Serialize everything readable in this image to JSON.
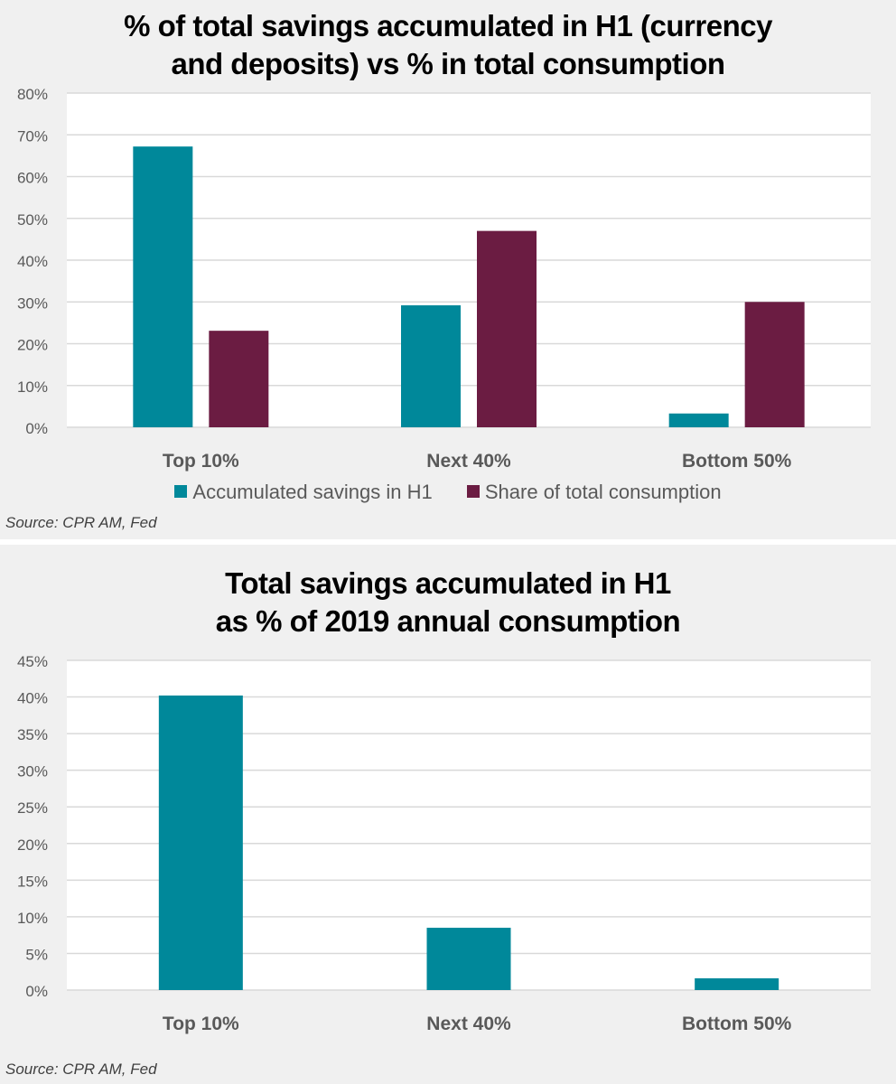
{
  "colors": {
    "teal": "#00889a",
    "maroon": "#6b1c42",
    "grid": "#d9d9d9",
    "tick_text": "#595959",
    "panel_bg": "#f0f0f0",
    "plot_bg": "#ffffff"
  },
  "chart_data": [
    {
      "type": "bar",
      "title": "% of total savings accumulated in H1 (currency and deposits) vs % in total consumption",
      "title_lines": [
        "% of total savings accumulated in H1 (currency",
        "and deposits) vs % in total consumption"
      ],
      "categories": [
        "Top 10%",
        "Next 40%",
        "Bottom 50%"
      ],
      "series": [
        {
          "name": "Accumulated savings in H1",
          "color": "#00889a",
          "values": [
            67.2,
            29.2,
            3.3
          ]
        },
        {
          "name": "Share of total consumption",
          "color": "#6b1c42",
          "values": [
            23.1,
            47.0,
            30.0
          ]
        }
      ],
      "ylim": [
        0,
        80
      ],
      "yticks": [
        0,
        10,
        20,
        30,
        40,
        50,
        60,
        70,
        80
      ],
      "ytick_labels": [
        "0%",
        "10%",
        "20%",
        "30%",
        "40%",
        "50%",
        "60%",
        "70%",
        "80%"
      ],
      "xlabel": "",
      "ylabel": "",
      "grid": true,
      "legend": "bottom",
      "source": "Source: CPR AM, Fed"
    },
    {
      "type": "bar",
      "title": "Total savings accumulated in H1 as % of 2019 annual consumption",
      "title_lines": [
        "Total savings accumulated in H1",
        "as % of 2019 annual consumption"
      ],
      "categories": [
        "Top 10%",
        "Next 40%",
        "Bottom 50%"
      ],
      "series": [
        {
          "name": "Total savings accumulated in H1",
          "color": "#00889a",
          "values": [
            40.2,
            8.5,
            1.6
          ]
        }
      ],
      "ylim": [
        0,
        45
      ],
      "yticks": [
        0,
        5,
        10,
        15,
        20,
        25,
        30,
        35,
        40,
        45
      ],
      "ytick_labels": [
        "0%",
        "5%",
        "10%",
        "15%",
        "20%",
        "25%",
        "30%",
        "35%",
        "40%",
        "45%"
      ],
      "xlabel": "",
      "ylabel": "",
      "grid": true,
      "legend": "none",
      "source": "Source: CPR AM, Fed"
    }
  ]
}
